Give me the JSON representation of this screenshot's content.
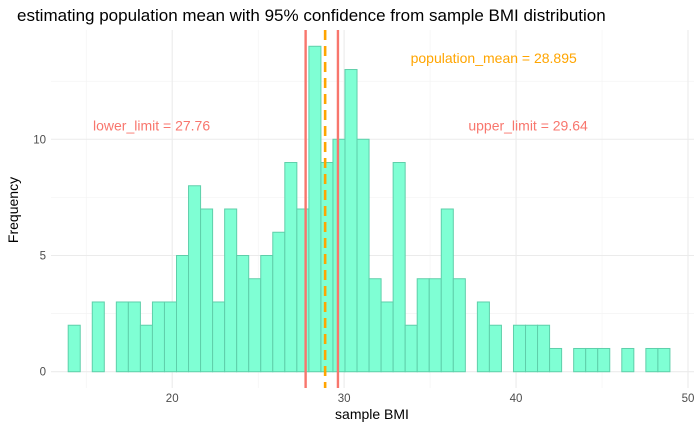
{
  "chart_data": {
    "type": "bar",
    "title": "estimating population mean with 95% confidence from sample BMI distribution",
    "xlabel": "sample BMI",
    "ylabel": "Frequency",
    "xlim": [
      12.95,
      50.35
    ],
    "ylim": [
      -0.7,
      14.7
    ],
    "xticks": [
      20,
      30,
      40,
      50
    ],
    "yticks": [
      0,
      5,
      10
    ],
    "grid": true,
    "bin_start": 13.95,
    "bin_width": 0.7,
    "counts": [
      2,
      0,
      3,
      0,
      3,
      3,
      2,
      3,
      3,
      5,
      8,
      7,
      3,
      7,
      5,
      4,
      5,
      6,
      9,
      7,
      14,
      9,
      10,
      13,
      10,
      4,
      3,
      9,
      2,
      4,
      4,
      7,
      4,
      0,
      3,
      2,
      0,
      2,
      2,
      2,
      1,
      0,
      1,
      1,
      1,
      0,
      1,
      0,
      1,
      1
    ],
    "colors": {
      "bar_fill": "#7fffd4",
      "bar_stroke": "#5fcfaa",
      "limit_line": "#f8766d",
      "mean_line": "#ffa500"
    },
    "lines": [
      {
        "name": "lower_limit",
        "x": 27.76,
        "style": "solid",
        "color": "#f8766d"
      },
      {
        "name": "upper_limit",
        "x": 29.64,
        "style": "solid",
        "color": "#f8766d"
      },
      {
        "name": "population_mean",
        "x": 28.895,
        "style": "dashed",
        "color": "#ffa500"
      }
    ],
    "annotations": [
      {
        "name": "lower-limit-label",
        "text": "lower_limit = 27.76",
        "x": 18.8,
        "y": 10.6,
        "color": "#f8766d"
      },
      {
        "name": "upper-limit-label",
        "text": "upper_limit = 29.64",
        "x": 40.7,
        "y": 10.6,
        "color": "#f8766d"
      },
      {
        "name": "population-mean-label",
        "text": "population_mean = 28.895",
        "x": 38.7,
        "y": 13.5,
        "color": "#ffa500"
      }
    ]
  }
}
